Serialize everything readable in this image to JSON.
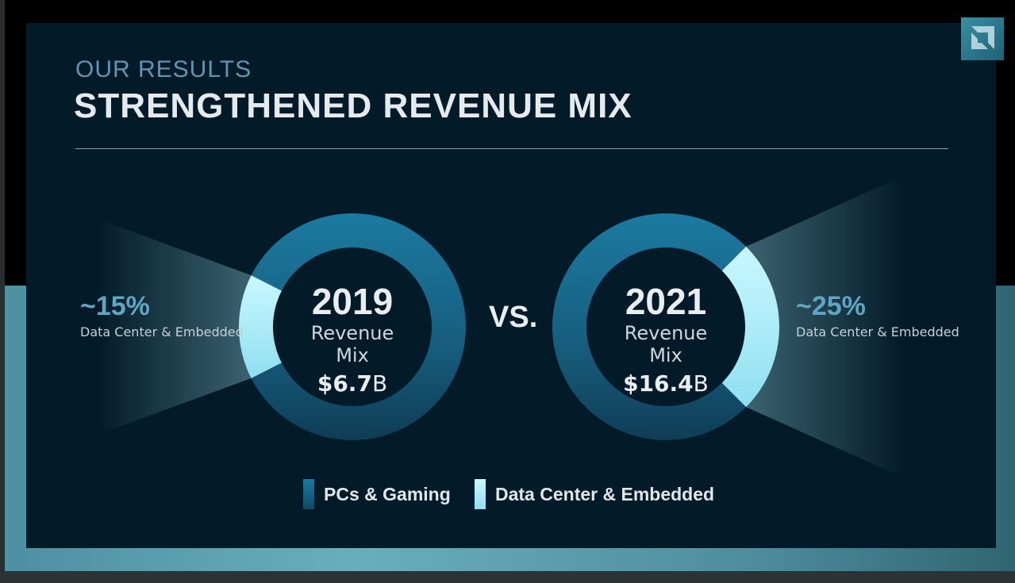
{
  "slide": {
    "kicker": "OUR RESULTS",
    "title": "STRENGTHENED REVENUE MIX",
    "vs_label": "VS.",
    "colors": {
      "pcs_gaming": "#1b7496",
      "data_center": "#b5f4ff",
      "background": "#031b29"
    }
  },
  "chart_data": {
    "type": "pie",
    "categories": [
      "PCs & Gaming",
      "Data Center & Embedded"
    ],
    "charts": [
      {
        "year": "2019",
        "subtitle": "Revenue Mix",
        "total_value": "$6.7",
        "total_unit": "B",
        "callout_pct": "~15%",
        "callout_label": "Data Center & Embedded",
        "values": [
          85,
          15
        ]
      },
      {
        "year": "2021",
        "subtitle": "Revenue Mix",
        "total_value": "$16.4",
        "total_unit": "B",
        "callout_pct": "~25%",
        "callout_label": "Data Center & Embedded",
        "values": [
          75,
          25
        ]
      }
    ],
    "legend": [
      "PCs & Gaming",
      "Data Center & Embedded"
    ]
  }
}
